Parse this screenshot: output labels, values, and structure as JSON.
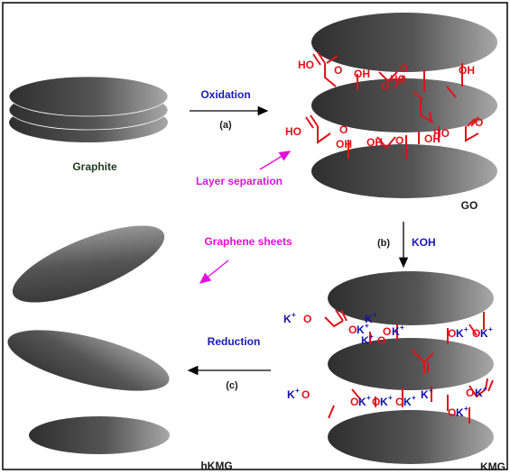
{
  "labels": {
    "graphite": "Graphite",
    "go": "GO",
    "hkmg": "hKMG",
    "kmg": "KMG",
    "oxidation": "Oxidation",
    "step_a": "(a)",
    "layer_separation": "Layer separation",
    "step_b": "(b)",
    "koh": "KOH",
    "graphene_sheets": "Graphene sheets",
    "reduction": "Reduction",
    "step_c": "(c)"
  },
  "groups": {
    "ho": "HO",
    "oh": "OH",
    "o": "O",
    "k_plus": "K",
    "plus": "+"
  },
  "colors": {
    "sheet_dark": "#3a3a3a",
    "sheet_light": "#9a9a9a",
    "functional_red": "#e0121b",
    "ion_blue": "#1010a8",
    "process_blue": "#1a1ab8",
    "annotation_magenta": "#e010d8",
    "frame": "#000000",
    "text_dark": "#1a1a1a",
    "caption_green": "#1e3a1e"
  }
}
